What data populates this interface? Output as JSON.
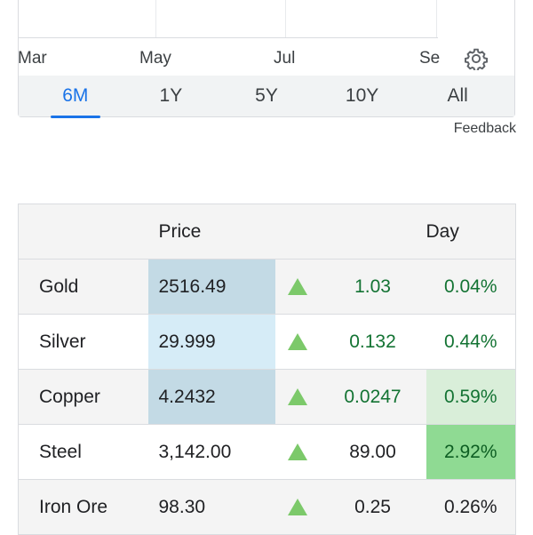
{
  "chart": {
    "x_labels": [
      "Mar",
      "May",
      "Jul",
      "Se"
    ]
  },
  "range_tabs": [
    {
      "label": "6M",
      "active": true
    },
    {
      "label": "1Y",
      "active": false
    },
    {
      "label": "5Y",
      "active": false
    },
    {
      "label": "10Y",
      "active": false
    },
    {
      "label": "All",
      "active": false
    }
  ],
  "feedback_label": "Feedback",
  "table": {
    "headers": {
      "name": "",
      "price": "Price",
      "day": "Day"
    },
    "rows": [
      {
        "name": "Gold",
        "price": "2516.49",
        "direction": "up",
        "change": "1.03",
        "pct": "0.04%"
      },
      {
        "name": "Silver",
        "price": "29.999",
        "direction": "up",
        "change": "0.132",
        "pct": "0.44%"
      },
      {
        "name": "Copper",
        "price": "4.2432",
        "direction": "up",
        "change": "0.0247",
        "pct": "0.59%"
      },
      {
        "name": "Steel",
        "price": "3,142.00",
        "direction": "up",
        "change": "89.00",
        "pct": "2.92%"
      },
      {
        "name": "Iron Ore",
        "price": "98.30",
        "direction": "up",
        "change": "0.25",
        "pct": "0.26%"
      }
    ]
  },
  "icons": {
    "settings": "gear-icon",
    "up": "up-triangle-icon"
  },
  "colors": {
    "accent": "#1a73e8",
    "positive": "#137333",
    "up_arrow": "#7cc96a",
    "price_heat": "#c3dae5",
    "pct_heat_strong": "#8fda93"
  }
}
